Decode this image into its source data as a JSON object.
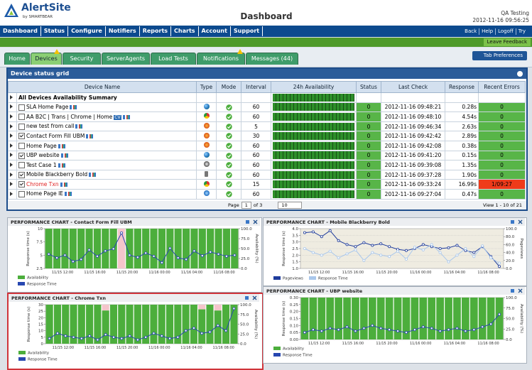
{
  "header": {
    "logo": "AlertSite",
    "logo_sub": "by SMARTBEAR",
    "title": "Dashboard",
    "user": "QA Testing",
    "datetime": "2012-11-16 09:56:25"
  },
  "nav": {
    "items": [
      "Dashboard",
      "Status",
      "Configure",
      "Notifiers",
      "Reports",
      "Charts",
      "Account",
      "Support"
    ],
    "links": [
      "Back",
      "Help",
      "Logoff",
      "Try"
    ]
  },
  "feedback": "Leave Feedback",
  "tabs": {
    "items": [
      "Home",
      "Devices",
      "Security",
      "ServerAgents",
      "Load Tests",
      "Notifications",
      "Messages (44)"
    ],
    "active": 1,
    "warning": [
      1,
      5
    ],
    "preferences": "Tab Preferences"
  },
  "grid": {
    "title": "Device status grid",
    "columns": [
      "Device Name",
      "Type",
      "Mode",
      "Interval",
      "24h Availability",
      "Status",
      "Last Check",
      "Response",
      "Recent Errors"
    ],
    "summary": "All Devices Availability Summary",
    "rows": [
      {
        "name": "SLA Home Page",
        "type": "globe",
        "checked": false,
        "interval": 60,
        "status": "0",
        "last_check": "2012-11-16 09:48:21",
        "response": "0.28s",
        "errors": "0"
      },
      {
        "name": "AA B2C | Trans | Chrome | Home",
        "badge": "CV",
        "type": "chrome",
        "checked": false,
        "interval": 60,
        "status": "0",
        "last_check": "2012-11-16 09:48:10",
        "response": "4.54s",
        "errors": "0"
      },
      {
        "name": "new test from call",
        "type": "firefox",
        "checked": false,
        "interval": 5,
        "status": "0",
        "last_check": "2012-11-16 09:46:34",
        "response": "2.63s",
        "errors": "0"
      },
      {
        "name": "Contact Form Fill UBM",
        "type": "firefox",
        "checked": true,
        "interval": 30,
        "status": "0",
        "last_check": "2012-11-16 09:42:42",
        "response": "2.89s",
        "errors": "0"
      },
      {
        "name": "Home Page",
        "type": "firefox",
        "checked": false,
        "interval": 60,
        "status": "0",
        "last_check": "2012-11-16 09:42:08",
        "response": "0.38s",
        "errors": "0"
      },
      {
        "name": "UBP website",
        "type": "globe",
        "checked": true,
        "interval": 60,
        "status": "0",
        "last_check": "2012-11-16 09:41:20",
        "response": "0.15s",
        "errors": "0"
      },
      {
        "name": "Test Case 1",
        "type": "other",
        "checked": false,
        "interval": 60,
        "status": "0",
        "last_check": "2012-11-16 09:39:08",
        "response": "1.35s",
        "errors": "0"
      },
      {
        "name": "Mobile Blackberry Bold",
        "type": "mobile",
        "checked": true,
        "interval": 60,
        "status": "0",
        "last_check": "2012-11-16 09:37:28",
        "response": "1.90s",
        "errors": "0"
      },
      {
        "name": "Chrome Txn",
        "type": "chrome",
        "checked": true,
        "alert": true,
        "interval": 15,
        "status": "0",
        "last_check": "2012-11-16 09:33:24",
        "response": "16.99s",
        "errors": "1/09:27"
      },
      {
        "name": "Home Page IE",
        "type": "ie",
        "checked": false,
        "interval": 60,
        "status": "0",
        "last_check": "2012-11-16 09:27:04",
        "response": "0.47s",
        "errors": "0"
      }
    ]
  },
  "pager": {
    "page_label": "Page",
    "page": "1",
    "of": "of 3",
    "per_page": "10",
    "view": "View 1 - 10 of 21"
  },
  "charts": [
    {
      "title": "PERFORMANCE CHART -  Contact Form Fill UBM",
      "ylabel": "Response time (s)",
      "y2label": "Availability (%)",
      "background": "#ffffff",
      "legend": "column",
      "ylim": [
        2.5,
        10
      ],
      "yticks": [
        2.5,
        5,
        7.5,
        10
      ],
      "y2lim": [
        0,
        100
      ],
      "y2ticks": [
        {
          "value": 0,
          "label": "0.0"
        },
        {
          "value": 25,
          "label": "25.0"
        },
        {
          "value": 50,
          "label": "50.0"
        },
        {
          "value": 75,
          "label": "75.0"
        },
        {
          "value": 100,
          "label": "100.0"
        }
      ],
      "xticks": [
        "11/15 12:00",
        "11/15 16:00",
        "11/15 20:00",
        "11/16 00:00",
        "11/16 04:00",
        "11/16 08:00"
      ],
      "series": [
        {
          "name": "Availability",
          "kind": "bar",
          "axis": "y2",
          "color": "#4cae3c",
          "values": [
            100,
            100,
            100,
            100,
            100,
            100,
            100,
            100,
            100,
            0,
            100,
            100,
            100,
            100,
            100,
            100,
            100,
            100,
            100,
            100,
            100,
            100,
            100,
            100
          ]
        },
        {
          "name": "Response Time",
          "kind": "line",
          "axis": "y",
          "color": "#2747b0",
          "values": [
            5.2,
            4.5,
            5.0,
            3.8,
            4.2,
            6.0,
            4.8,
            5.8,
            6.2,
            9.2,
            5.0,
            4.6,
            5.4,
            4.8,
            3.6,
            6.3,
            4.5,
            4.2,
            5.8,
            4.9,
            5.6,
            5.2,
            4.8,
            5.0
          ]
        }
      ]
    },
    {
      "title": "PERFORMANCE CHART -  Chrome Txn",
      "ylabel": "Response time (s)",
      "y2label": "Availability (%)",
      "background": "#ffffff",
      "legend": "column",
      "highlight": true,
      "ylim": [
        0,
        30
      ],
      "yticks": [
        0,
        5,
        10,
        15,
        20,
        25,
        30
      ],
      "y2lim": [
        0,
        100
      ],
      "y2ticks": [
        {
          "value": 0,
          "label": "0.0"
        },
        {
          "value": 25,
          "label": "25.0"
        },
        {
          "value": 50,
          "label": "50.0"
        },
        {
          "value": 75,
          "label": "75.0"
        },
        {
          "value": 100,
          "label": "100.0"
        }
      ],
      "xticks": [
        "11/15 12:00",
        "11/15 16:00",
        "11/15 20:00",
        "11/16 00:00",
        "11/16 04:00",
        "11/16 08:00"
      ],
      "series": [
        {
          "name": "Availability",
          "kind": "bar",
          "axis": "y2",
          "color": "#4cae3c",
          "values": [
            100,
            100,
            100,
            100,
            100,
            100,
            100,
            85,
            100,
            100,
            100,
            100,
            100,
            100,
            100,
            100,
            100,
            100,
            100,
            88,
            100,
            85,
            100,
            100
          ]
        },
        {
          "name": "Response Time",
          "kind": "line",
          "axis": "y",
          "color": "#2747b0",
          "values": [
            4,
            8,
            6,
            5,
            4,
            6,
            3,
            7,
            5,
            4,
            6,
            3,
            5,
            8,
            6,
            4,
            5,
            10,
            12,
            8,
            9,
            14,
            10,
            27
          ]
        }
      ]
    },
    {
      "title": "PERFORMANCE CHART -  Mobile Blackberry Bold",
      "ylabel": "Response time (s)",
      "y2label": "Pageviews",
      "background": "#efece1",
      "legend": "row",
      "ylim": [
        1,
        4
      ],
      "yticks": [
        {
          "value": 1,
          "label": "1.0"
        },
        {
          "value": 1.5,
          "label": "1.5"
        },
        {
          "value": 2,
          "label": "2.0"
        },
        {
          "value": 2.5,
          "label": "2.5"
        },
        {
          "value": 3,
          "label": "3.0"
        },
        {
          "value": 3.5,
          "label": "3.5"
        },
        {
          "value": 4,
          "label": "4.0"
        }
      ],
      "y2lim": [
        0,
        100
      ],
      "y2ticks": [
        {
          "value": 0,
          "label": "0.0"
        },
        {
          "value": 20,
          "label": "20.0"
        },
        {
          "value": 40,
          "label": "40.0"
        },
        {
          "value": 60,
          "label": "60.0"
        },
        {
          "value": 80,
          "label": "80.0"
        },
        {
          "value": 100,
          "label": "100.0"
        }
      ],
      "xticks": [
        "11/15 12:00",
        "11/15 16:00",
        "11/15 20:00",
        "11/16 00:00",
        "11/16 04:00",
        "11/16 08:00"
      ],
      "series": [
        {
          "name": "Pageviews",
          "kind": "line",
          "axis": "y2",
          "color": "#1f3c9c",
          "values": [
            90,
            92,
            80,
            95,
            70,
            60,
            55,
            65,
            58,
            62,
            55,
            48,
            45,
            50,
            60,
            55,
            50,
            52,
            58,
            45,
            40,
            55,
            30,
            5
          ]
        },
        {
          "name": "Response Time",
          "kind": "line",
          "axis": "y",
          "color": "#a9c7ec",
          "values": [
            2.5,
            2.2,
            2.0,
            2.3,
            1.8,
            2.1,
            2.4,
            1.6,
            2.2,
            2.0,
            1.9,
            2.3,
            1.7,
            2.6,
            2.4,
            2.8,
            2.2,
            1.5,
            2.0,
            2.5,
            1.9,
            2.7,
            1.8,
            1.4
          ]
        }
      ]
    },
    {
      "title": "PERFORMANCE CHART -  UBP website",
      "ylabel": "Response time (s)",
      "y2label": "Availability (%)",
      "background": "#ffffff",
      "legend": "column",
      "ylim": [
        0,
        0.3
      ],
      "yticks": [
        {
          "value": 0,
          "label": "0.00"
        },
        {
          "value": 0.05,
          "label": "0.05"
        },
        {
          "value": 0.1,
          "label": "0.10"
        },
        {
          "value": 0.15,
          "label": "0.15"
        },
        {
          "value": 0.2,
          "label": "0.20"
        },
        {
          "value": 0.25,
          "label": "0.25"
        },
        {
          "value": 0.3,
          "label": "0.30"
        }
      ],
      "y2lim": [
        0,
        100
      ],
      "y2ticks": [
        {
          "value": 0,
          "label": "0.0"
        },
        {
          "value": 25,
          "label": "25.0"
        },
        {
          "value": 50,
          "label": "50.0"
        },
        {
          "value": 75,
          "label": "75.0"
        },
        {
          "value": 100,
          "label": "100.0"
        }
      ],
      "xticks": [
        "11/15 12:00",
        "11/15 16:00",
        "11/15 20:00",
        "11/16 00:00",
        "11/16 04:00",
        "11/16 08:00"
      ],
      "series": [
        {
          "name": "Availability",
          "kind": "bar",
          "axis": "y2",
          "color": "#4cae3c",
          "values": [
            100,
            100,
            100,
            100,
            100,
            100,
            100,
            100,
            100,
            100,
            100,
            100,
            100,
            100,
            100,
            100,
            100,
            100,
            100,
            100,
            100,
            100,
            100,
            100
          ]
        },
        {
          "name": "Response Time",
          "kind": "line",
          "axis": "y",
          "color": "#2747b0",
          "values": [
            0.05,
            0.07,
            0.06,
            0.08,
            0.07,
            0.09,
            0.06,
            0.08,
            0.1,
            0.08,
            0.07,
            0.06,
            0.05,
            0.07,
            0.09,
            0.08,
            0.06,
            0.07,
            0.08,
            0.06,
            0.07,
            0.09,
            0.11,
            0.18
          ]
        }
      ]
    }
  ]
}
